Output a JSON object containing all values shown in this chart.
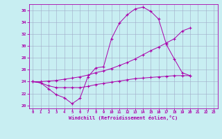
{
  "bg_color": "#c8eef2",
  "grid_color": "#a0aac8",
  "line_color": "#aa00aa",
  "xlabel": "Windchill (Refroidissement éolien,°C)",
  "xlim": [
    -0.5,
    23.5
  ],
  "ylim": [
    19.5,
    37.0
  ],
  "yticks": [
    20,
    22,
    24,
    26,
    28,
    30,
    32,
    34,
    36
  ],
  "xticks": [
    0,
    1,
    2,
    3,
    4,
    5,
    6,
    7,
    8,
    9,
    10,
    11,
    12,
    13,
    14,
    15,
    16,
    17,
    18,
    19,
    20,
    21,
    22,
    23
  ],
  "x_top": [
    0,
    1,
    2,
    3,
    4,
    5,
    6,
    7,
    8,
    9,
    10,
    11,
    12,
    13,
    14,
    15,
    16,
    17,
    18,
    19,
    20
  ],
  "y_top": [
    24.0,
    23.8,
    22.8,
    21.8,
    21.3,
    20.3,
    21.2,
    24.8,
    26.3,
    26.5,
    31.2,
    33.8,
    35.2,
    36.2,
    36.5,
    35.8,
    34.5,
    30.2,
    27.8,
    25.5,
    25.0
  ],
  "x_mid": [
    0,
    1,
    2,
    3,
    4,
    5,
    6,
    7,
    8,
    9,
    10,
    11,
    12,
    13,
    14,
    15,
    16,
    17,
    18,
    19,
    20
  ],
  "y_mid": [
    24.0,
    24.0,
    24.1,
    24.2,
    24.4,
    24.6,
    24.8,
    25.1,
    25.5,
    25.8,
    26.2,
    26.7,
    27.2,
    27.8,
    28.5,
    29.2,
    29.8,
    30.5,
    31.2,
    32.5,
    33.0
  ],
  "x_bot": [
    0,
    1,
    2,
    3,
    4,
    5,
    6,
    7,
    8,
    9,
    10,
    11,
    12,
    13,
    14,
    15,
    16,
    17,
    18,
    19,
    20
  ],
  "y_bot": [
    24.0,
    23.8,
    23.3,
    23.0,
    23.0,
    23.0,
    23.0,
    23.2,
    23.5,
    23.7,
    23.9,
    24.1,
    24.3,
    24.5,
    24.6,
    24.7,
    24.8,
    24.9,
    25.0,
    25.0,
    25.0
  ]
}
